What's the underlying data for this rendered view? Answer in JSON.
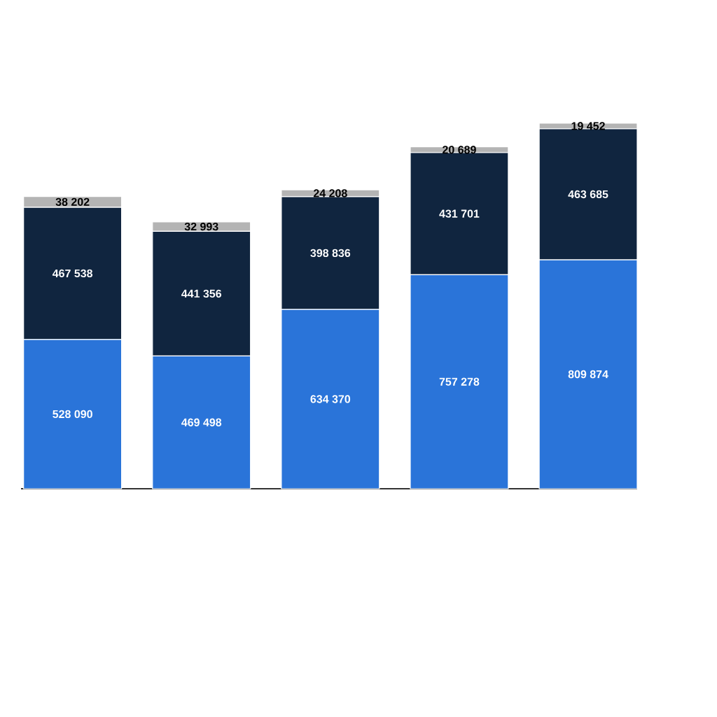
{
  "chart_data": {
    "type": "bar",
    "stacked": true,
    "categories": [
      null,
      null,
      null,
      null,
      null
    ],
    "series": [
      {
        "color": "#2a74d9",
        "values": [
          528090,
          469498,
          634370,
          757278,
          809874
        ],
        "value_labels": [
          "528 090",
          "469 498",
          "634 370",
          "757 278",
          "809 874"
        ]
      },
      {
        "color": "#10253f",
        "values": [
          467538,
          441356,
          398836,
          431701,
          463685
        ],
        "value_labels": [
          "467 538",
          "441 356",
          "398 836",
          "431 701",
          "463 685"
        ]
      },
      {
        "color": "#b4b4b4",
        "values": [
          38202,
          32993,
          24208,
          20689,
          19452
        ],
        "value_labels": [
          "38 202",
          "32 993",
          "24 208",
          "20 689",
          "19 452"
        ]
      }
    ]
  }
}
